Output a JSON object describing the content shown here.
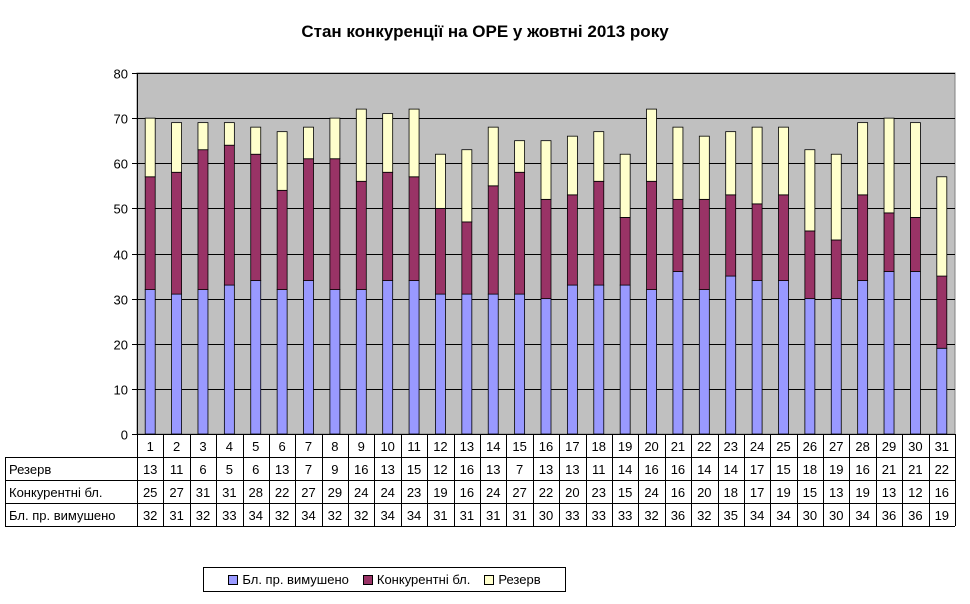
{
  "chart_data": {
    "type": "bar",
    "stacked": true,
    "title": "Стан конкуренції на ОРЕ  у жовтні 2013 року",
    "ylim": [
      0,
      80
    ],
    "yticks": [
      0,
      10,
      20,
      30,
      40,
      50,
      60,
      70,
      80
    ],
    "grid": true,
    "legend_position": "bottom",
    "categories": [
      "1",
      "2",
      "3",
      "4",
      "5",
      "6",
      "7",
      "8",
      "9",
      "10",
      "11",
      "12",
      "13",
      "14",
      "15",
      "16",
      "17",
      "18",
      "19",
      "20",
      "21",
      "22",
      "23",
      "24",
      "25",
      "26",
      "27",
      "28",
      "29",
      "30",
      "31"
    ],
    "series": [
      {
        "name": "Бл. пр. вимушено",
        "color": "#9999ff",
        "values": [
          32,
          31,
          32,
          33,
          34,
          32,
          34,
          32,
          32,
          34,
          34,
          31,
          31,
          31,
          31,
          30,
          33,
          33,
          33,
          32,
          36,
          32,
          35,
          34,
          34,
          30,
          30,
          34,
          36,
          36,
          19
        ]
      },
      {
        "name": "Конкурентні бл.",
        "color": "#993366",
        "values": [
          25,
          27,
          31,
          31,
          28,
          22,
          27,
          29,
          24,
          24,
          23,
          19,
          16,
          24,
          27,
          22,
          20,
          23,
          15,
          24,
          16,
          20,
          18,
          17,
          19,
          15,
          13,
          19,
          13,
          12,
          16
        ]
      },
      {
        "name": "Резерв",
        "color": "#ffffcc",
        "values": [
          13,
          11,
          6,
          5,
          6,
          13,
          7,
          9,
          16,
          13,
          15,
          12,
          16,
          13,
          7,
          13,
          13,
          11,
          14,
          16,
          16,
          14,
          14,
          17,
          15,
          18,
          19,
          16,
          21,
          21,
          22
        ]
      }
    ],
    "table_rows_order": [
      "Резерв",
      "Конкурентні бл.",
      "Бл. пр. вимушено"
    ]
  }
}
